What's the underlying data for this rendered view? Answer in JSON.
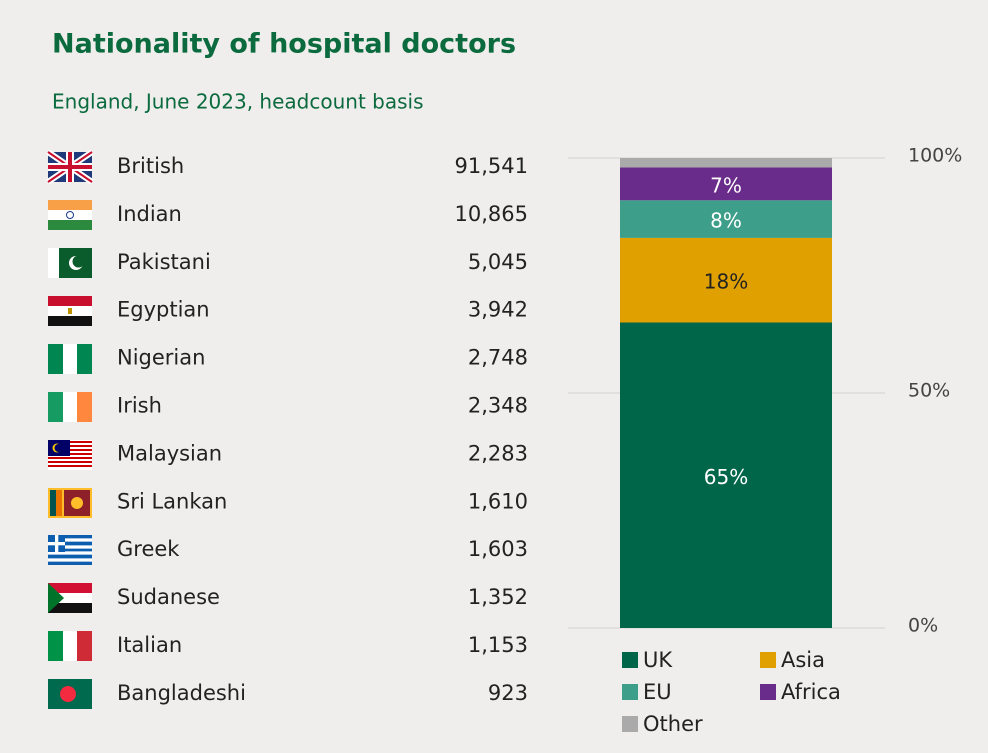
{
  "header": {
    "title": "Nationality of hospital doctors",
    "subtitle": "England, June 2023, headcount basis"
  },
  "table": {
    "rows": [
      [
        "British",
        "91,541"
      ],
      [
        "Indian",
        "10,865"
      ],
      [
        "Pakistani",
        "5,045"
      ],
      [
        "Egyptian",
        "3,942"
      ],
      [
        "Nigerian",
        "2,748"
      ],
      [
        "Irish",
        "2,348"
      ],
      [
        "Malaysian",
        "2,283"
      ],
      [
        "Sri Lankan",
        "1,610"
      ],
      [
        "Greek",
        "1,603"
      ],
      [
        "Sudanese",
        "1,352"
      ],
      [
        "Italian",
        "1,153"
      ],
      [
        "Bangladeshi",
        "923"
      ]
    ]
  },
  "chart_data": {
    "type": "stacked_bar",
    "ylim": [
      0,
      100
    ],
    "yticks": [
      {
        "value": 0,
        "label": "0%"
      },
      {
        "value": 50,
        "label": "50%"
      },
      {
        "value": 100,
        "label": "100%"
      }
    ],
    "grid": true,
    "series": [
      {
        "name": "UK",
        "color": "#00664a",
        "values": [
          65
        ],
        "value_labels": [
          "65%"
        ]
      },
      {
        "name": "Asia",
        "color": "#e0a100",
        "values": [
          18
        ],
        "value_labels": [
          "18%"
        ]
      },
      {
        "name": "EU",
        "color": "#3d9e8a",
        "values": [
          8
        ],
        "value_labels": [
          "8%"
        ]
      },
      {
        "name": "Africa",
        "color": "#6a2c8a",
        "values": [
          7
        ],
        "value_labels": [
          "7%"
        ]
      },
      {
        "name": "Other",
        "color": "#aaaaaa",
        "values": [
          2
        ]
      }
    ]
  }
}
